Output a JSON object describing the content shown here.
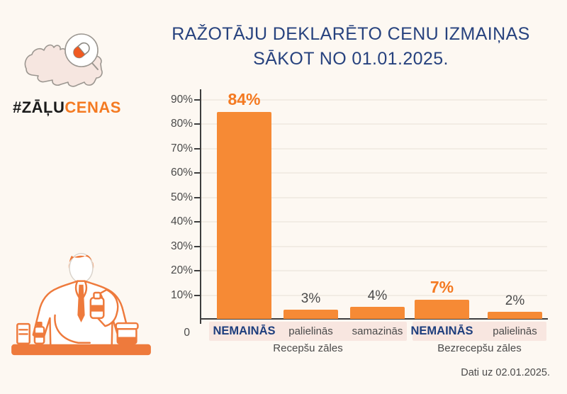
{
  "page": {
    "background": "#FDF8F2",
    "footer_note": "Dati uz 02.01.2025."
  },
  "logo": {
    "hashtag_prefix": "#ZĀĻU",
    "hashtag_suffix": "CENAS",
    "map_icon": "latvia-map-icon",
    "pill_icon": "pill-icon"
  },
  "title": {
    "line1": "RAŽOTĀJU DEKLARĒTO CENU IZMAIŅAS",
    "line2": "SĀKOT NO 01.01.2025."
  },
  "illustration": {
    "name": "pharmacist-illustration"
  },
  "chart_data": {
    "type": "bar",
    "title": "RAŽOTĀJU DEKLARĒTO CENU IZMAIŅAS SĀKOT NO 01.01.2025.",
    "xlabel": "",
    "ylabel": "",
    "ylim": [
      0,
      90
    ],
    "yticks": [
      0,
      10,
      20,
      30,
      40,
      50,
      60,
      70,
      80,
      90
    ],
    "ytick_labels": [
      "0",
      "10%",
      "20%",
      "30%",
      "40%",
      "50%",
      "60%",
      "70%",
      "80%",
      "90%"
    ],
    "grid": true,
    "legend": false,
    "groups": [
      {
        "label": "Recepšu zāles",
        "bars": [
          {
            "category": "NEMAINĀS",
            "value": 84,
            "value_label": "84%",
            "emphasis": true
          },
          {
            "category": "palielinās",
            "value": 3,
            "value_label": "3%",
            "emphasis": false
          },
          {
            "category": "samazinās",
            "value": 4,
            "value_label": "4%",
            "emphasis": false
          }
        ]
      },
      {
        "label": "Bezrecepšu zāles",
        "bars": [
          {
            "category": "NEMAINĀS",
            "value": 7,
            "value_label": "7%",
            "emphasis": true
          },
          {
            "category": "palielinās",
            "value": 2,
            "value_label": "2%",
            "emphasis": false
          }
        ]
      }
    ],
    "colors": {
      "bar": "#F68A35",
      "value_label_emphasis": "#F47A22",
      "value_label_normal": "#4A4A4A",
      "category_emphasis": "#1E3E7D",
      "category_normal": "#4A4A4A",
      "strip_background": "#F8E6E0",
      "axis": "#3E3E3E",
      "gridline": "#F2ECE4",
      "tick_label": "#4A4A4A"
    }
  }
}
